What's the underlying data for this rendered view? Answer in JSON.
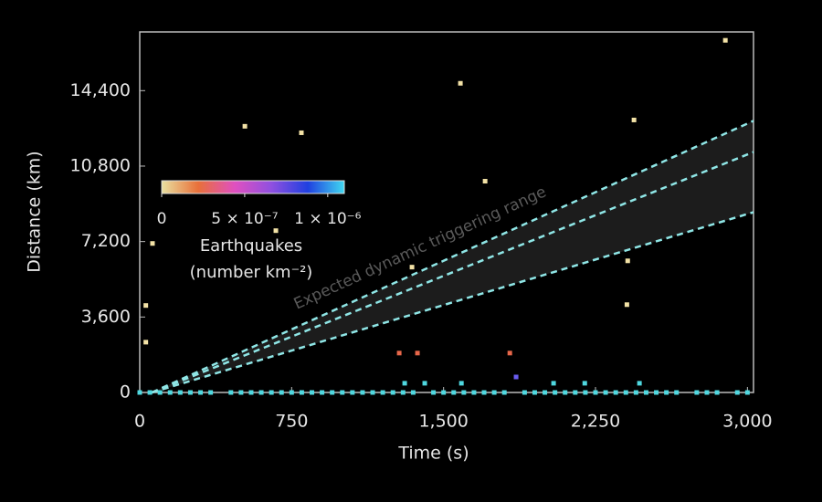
{
  "chart_data": {
    "type": "scatter",
    "xlabel": "Time (s)",
    "ylabel": "Distance (km)",
    "xlim": [
      0,
      3030
    ],
    "ylim": [
      0,
      17200
    ],
    "xticks": [
      0,
      750,
      {
        "value": 1500,
        "label": "1,500"
      },
      {
        "value": 2250,
        "label": "2,250"
      },
      {
        "value": 3000,
        "label": "3,000"
      }
    ],
    "yticks": [
      0,
      {
        "value": 3600,
        "label": "3,600"
      },
      {
        "value": 7200,
        "label": "7,200"
      },
      {
        "value": 10800,
        "label": "10,800"
      },
      {
        "value": 14400,
        "label": "14,400"
      }
    ],
    "annotation": "Expected dynamic triggering range",
    "series": [
      {
        "type": "line",
        "color": "#8fe6e6",
        "x": [
          60,
          3030
        ],
        "y": [
          0,
          12960
        ]
      },
      {
        "type": "line",
        "color": "#8fe6e6",
        "x": [
          60,
          3030
        ],
        "y": [
          0,
          11470
        ]
      },
      {
        "type": "line",
        "color": "#8fe6e6",
        "x": [
          60,
          3030
        ],
        "y": [
          0,
          8600
        ]
      },
      {
        "type": "scatter",
        "color": "#f3e2a6",
        "x": [
          30,
          30,
          63,
          519,
          798,
          672,
          1344,
          1583,
          1705,
          2891,
          2440,
          2409,
          2405
        ],
        "y": [
          4150,
          2400,
          7110,
          12700,
          12390,
          7720,
          5980,
          14750,
          10080,
          16800,
          13000,
          6280,
          4190
        ]
      },
      {
        "type": "scatter",
        "color": "#e8674a",
        "x": [
          1281,
          1371,
          1827
        ],
        "y": [
          1880,
          1880,
          1880
        ]
      },
      {
        "type": "scatter",
        "color": "#6a5cf0",
        "x": [
          1858
        ],
        "y": [
          740
        ]
      },
      {
        "type": "scatter",
        "color": "#4fd8e0",
        "x": [
          1308,
          1407,
          1588,
          2043,
          2197,
          2467
        ],
        "y": [
          440,
          440,
          440,
          440,
          440,
          440
        ]
      },
      {
        "type": "scatter",
        "color": "#4fd8e0",
        "x": [
          0,
          50,
          100,
          150,
          200,
          250,
          300,
          350,
          450,
          500,
          550,
          600,
          650,
          700,
          750,
          800,
          850,
          900,
          950,
          1000,
          1050,
          1100,
          1150,
          1200,
          1250,
          1300,
          1350,
          1450,
          1500,
          1550,
          1600,
          1650,
          1700,
          1750,
          1800,
          1900,
          1950,
          2000,
          2050,
          2100,
          2150,
          2200,
          2250,
          2300,
          2350,
          2400,
          2450,
          2500,
          2550,
          2600,
          2650,
          2750,
          2800,
          2850,
          2950,
          3000
        ],
        "y": [
          0,
          0,
          0,
          0,
          0,
          0,
          0,
          0,
          0,
          0,
          0,
          0,
          0,
          0,
          0,
          0,
          0,
          0,
          0,
          0,
          0,
          0,
          0,
          0,
          0,
          0,
          0,
          0,
          0,
          0,
          0,
          0,
          0,
          0,
          0,
          0,
          0,
          0,
          0,
          0,
          0,
          0,
          0,
          0,
          0,
          0,
          0,
          0,
          0,
          0,
          0,
          0,
          0,
          0,
          0,
          0
        ]
      }
    ],
    "colorbar": {
      "label": [
        "Earthquakes",
        "(number km⁻²)"
      ],
      "lim": [
        0,
        1.1e-06
      ],
      "colors": [
        "#e8e0a0",
        "#e8703a",
        "#e050c0",
        "#9050e0",
        "#2040e0",
        "#40d8f0"
      ],
      "ticks": [
        0,
        {
          "value": 5e-07,
          "label": "5 × 10⁻⁷"
        },
        {
          "value": 1e-06,
          "label": "1 × 10⁻⁶"
        }
      ]
    }
  }
}
